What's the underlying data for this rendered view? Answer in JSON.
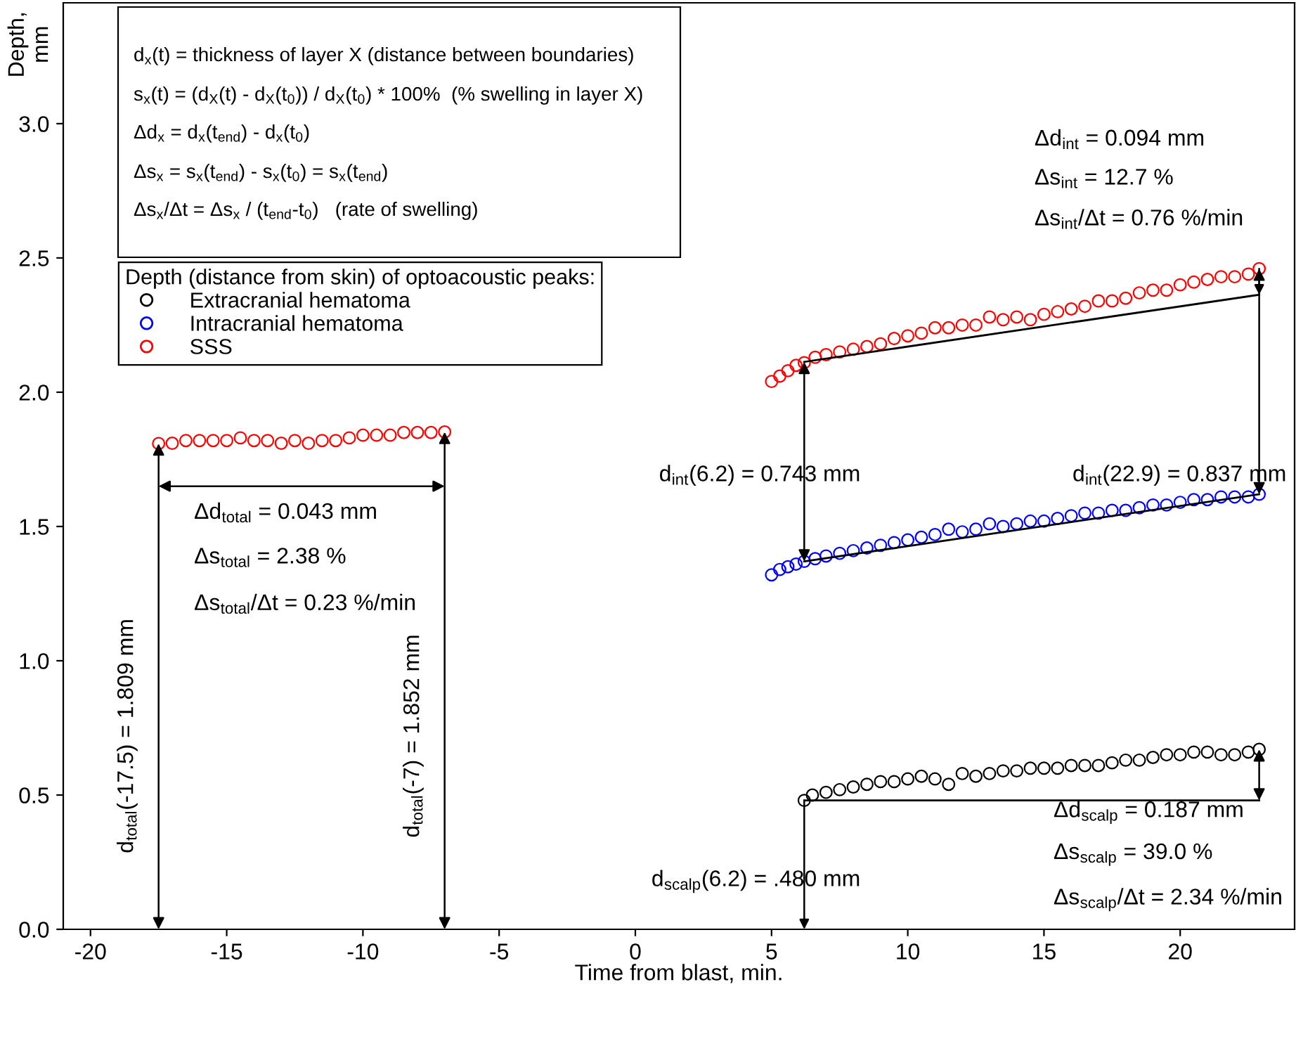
{
  "chart_data": {
    "type": "scatter",
    "xlabel": "Time from blast, min.",
    "ylabel": "Depth,\nmm",
    "legend_title": "Depth (distance from skin) of optoacoustic peaks:",
    "xlim": [
      -21,
      24.2
    ],
    "ylim": [
      0,
      3.45
    ],
    "xticks": [
      -20,
      -15,
      -10,
      -5,
      0,
      5,
      10,
      15,
      20
    ],
    "yticks": [
      {
        "value": 0,
        "label": "0.0"
      },
      {
        "value": 0.5,
        "label": "0.5"
      },
      {
        "value": 1,
        "label": "1.0"
      },
      {
        "value": 1.5,
        "label": "1.5"
      },
      {
        "value": 2,
        "label": "2.0"
      },
      {
        "value": 2.5,
        "label": "2.5"
      },
      {
        "value": 3,
        "label": "3.0"
      }
    ],
    "grid": false,
    "legend": "top left",
    "marker": "circle",
    "series": [
      {
        "name": "Extracranial hematoma",
        "color": "#000000",
        "x": [
          6.2,
          6.5,
          7.0,
          7.5,
          8.0,
          8.5,
          9.0,
          9.5,
          10.0,
          10.5,
          11.0,
          11.5,
          12.0,
          12.5,
          13.0,
          13.5,
          14.0,
          14.5,
          15.0,
          15.5,
          16.0,
          16.5,
          17.0,
          17.5,
          18.0,
          18.5,
          19.0,
          19.5,
          20.0,
          20.5,
          21.0,
          21.5,
          22.0,
          22.5,
          22.9
        ],
        "values": [
          0.48,
          0.5,
          0.51,
          0.52,
          0.53,
          0.54,
          0.55,
          0.55,
          0.56,
          0.57,
          0.56,
          0.54,
          0.58,
          0.57,
          0.58,
          0.59,
          0.59,
          0.6,
          0.6,
          0.6,
          0.61,
          0.61,
          0.61,
          0.62,
          0.63,
          0.63,
          0.64,
          0.65,
          0.65,
          0.66,
          0.66,
          0.65,
          0.65,
          0.66,
          0.67
        ]
      },
      {
        "name": "Intracranial hematoma",
        "color": "#0000ff",
        "x": [
          5.0,
          5.3,
          5.6,
          5.9,
          6.2,
          6.6,
          7.0,
          7.5,
          8.0,
          8.5,
          9.0,
          9.5,
          10.0,
          10.5,
          11.0,
          11.5,
          12.0,
          12.5,
          13.0,
          13.5,
          14.0,
          14.5,
          15.0,
          15.5,
          16.0,
          16.5,
          17.0,
          17.5,
          18.0,
          18.5,
          19.0,
          19.5,
          20.0,
          20.5,
          21.0,
          21.5,
          22.0,
          22.5,
          22.9
        ],
        "values": [
          1.32,
          1.34,
          1.35,
          1.36,
          1.37,
          1.38,
          1.39,
          1.4,
          1.41,
          1.42,
          1.43,
          1.44,
          1.45,
          1.46,
          1.47,
          1.49,
          1.48,
          1.49,
          1.51,
          1.5,
          1.51,
          1.52,
          1.52,
          1.53,
          1.54,
          1.55,
          1.55,
          1.56,
          1.56,
          1.57,
          1.58,
          1.58,
          1.59,
          1.6,
          1.6,
          1.61,
          1.61,
          1.61,
          1.62
        ]
      },
      {
        "name": "SSS",
        "color": "#ff0000",
        "x": [
          -17.5,
          -17,
          -16.5,
          -16,
          -15.5,
          -15,
          -14.5,
          -14,
          -13.5,
          -13,
          -12.5,
          -12,
          -11.5,
          -11,
          -10.5,
          -10,
          -9.5,
          -9,
          -8.5,
          -8,
          -7.5,
          -7,
          5.0,
          5.3,
          5.6,
          5.9,
          6.2,
          6.6,
          7.0,
          7.5,
          8.0,
          8.5,
          9.0,
          9.5,
          10.0,
          10.5,
          11.0,
          11.5,
          12.0,
          12.5,
          13.0,
          13.5,
          14.0,
          14.5,
          15.0,
          15.5,
          16.0,
          16.5,
          17.0,
          17.5,
          18.0,
          18.5,
          19.0,
          19.5,
          20.0,
          20.5,
          21.0,
          21.5,
          22.0,
          22.5,
          22.9
        ],
        "values": [
          1.809,
          1.81,
          1.82,
          1.82,
          1.82,
          1.82,
          1.83,
          1.82,
          1.82,
          1.81,
          1.82,
          1.81,
          1.82,
          1.82,
          1.83,
          1.84,
          1.84,
          1.84,
          1.85,
          1.85,
          1.85,
          1.852,
          2.04,
          2.06,
          2.08,
          2.1,
          2.11,
          2.13,
          2.14,
          2.15,
          2.16,
          2.17,
          2.18,
          2.2,
          2.21,
          2.22,
          2.24,
          2.24,
          2.25,
          2.25,
          2.28,
          2.27,
          2.28,
          2.27,
          2.29,
          2.3,
          2.31,
          2.32,
          2.34,
          2.34,
          2.35,
          2.37,
          2.38,
          2.38,
          2.4,
          2.41,
          2.42,
          2.43,
          2.43,
          2.44,
          2.46
        ]
      },
      {
        "type": "line",
        "marker": "none",
        "color": "#000000",
        "x": [
          6.2,
          22.9
        ],
        "values": [
          1.37,
          1.62
        ]
      },
      {
        "type": "line",
        "marker": "none",
        "color": "#000000",
        "x": [
          6.2,
          22.9
        ],
        "values": [
          2.113,
          2.363
        ]
      },
      {
        "type": "line",
        "marker": "none",
        "color": "#000000",
        "x": [
          6.2,
          22.9
        ],
        "values": [
          0.48,
          0.48
        ]
      }
    ],
    "annotations": [
      "d$_{x}$(t) = thickness of layer X (distance between boundaries)",
      "s$_{x}$(t) = (d$_{X}$(t) - d$_{X}$(t$_{0}$)) / d$_{X}$(t$_{0}$) * 100%  (% swelling in layer X)",
      "Δd$_{x}$ = d$_{x}$(t$_{end}$) - d$_{x}$(t$_{0}$)",
      "Δs$_{x}$ = s$_{x}$(t$_{end}$) - s$_{x}$(t$_{0}$) = s$_{x}$(t$_{end}$)",
      "Δs$_{x}$/Δt = Δs$_{x}$ / (t$_{end}$-t$_{0}$)   (rate of swelling)",
      "d$_{total}$(-17.5) = 1.809 mm",
      "d$_{total}$(-7) = 1.852 mm",
      "Δd$_{total}$ = 0.043 mm",
      "Δs$_{total}$ = 2.38 %",
      "Δs$_{total}$/Δt = 0.23 %/min",
      "Δd$_{int}$ = 0.094 mm",
      "Δs$_{int}$ = 12.7 %",
      "Δs$_{int}$/Δt = 0.76 %/min",
      "d$_{int}$(6.2) = 0.743 mm",
      "d$_{int}$(22.9) = 0.837 mm",
      "d$_{scalp}$(6.2) = .480 mm",
      "Δd$_{scalp}$ = 0.187 mm",
      "Δs$_{scalp}$ = 39.0 %",
      "Δs$_{scalp}$/Δt = 2.34 %/min"
    ]
  }
}
